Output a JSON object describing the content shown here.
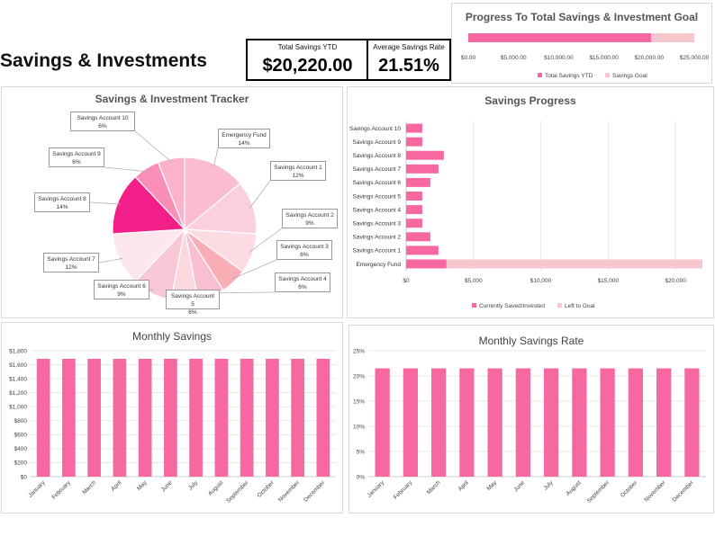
{
  "page": {
    "title": "Savings & Investments"
  },
  "kpis": {
    "total_label": "Total Savings YTD",
    "total_value": "$20,220.00",
    "rate_label": "Average Savings Rate",
    "rate_value": "21.51%"
  },
  "colors": {
    "pink": "#f768a1",
    "light_pink": "#f7c6cf",
    "accent": "#ff3e8e"
  },
  "chart_data": [
    {
      "id": "goal",
      "type": "bar",
      "orientation": "horizontal",
      "title": "Progress To Total Savings & Investment Goal",
      "xlim": [
        0,
        25000
      ],
      "xticks": [
        "$0.00",
        "$5,000.00",
        "$10,000.00",
        "$15,000.00",
        "$20,000.00",
        "$25,000.00"
      ],
      "series": [
        {
          "name": "Total Savings YTD",
          "values": [
            20220
          ]
        },
        {
          "name": "Savings Goal",
          "values": [
            25000
          ]
        }
      ]
    },
    {
      "id": "tracker",
      "type": "pie",
      "title": "Savings & Investment Tracker",
      "slices": [
        {
          "label": "Emergency Fund",
          "pct": "14%",
          "value": 14,
          "color": "#f9bcd0"
        },
        {
          "label": "Savings Account 1",
          "pct": "12%",
          "value": 12,
          "color": "#fbcfdc"
        },
        {
          "label": "Savings Account 2",
          "pct": "9%",
          "value": 9,
          "color": "#fcdbe3"
        },
        {
          "label": "Savings Account 3",
          "pct": "6%",
          "value": 6,
          "color": "#f9adb5"
        },
        {
          "label": "Savings Account 4",
          "pct": "6%",
          "value": 6,
          "color": "#f7bfd1"
        },
        {
          "label": "Savings Account 5",
          "pct": "6%",
          "value": 6,
          "color": "#fbd8de"
        },
        {
          "label": "Savings Account 6",
          "pct": "9%",
          "value": 9,
          "color": "#f9c8d6"
        },
        {
          "label": "Savings Account 7",
          "pct": "12%",
          "value": 12,
          "color": "#fde6ec"
        },
        {
          "label": "Savings Account 8",
          "pct": "14%",
          "value": 14,
          "color": "#f31f89"
        },
        {
          "label": "Savings Account 9",
          "pct": "6%",
          "value": 6,
          "color": "#f98fb9"
        },
        {
          "label": "Savings Account 10",
          "pct": "6%",
          "value": 6,
          "color": "#fbb3cb"
        }
      ]
    },
    {
      "id": "progress",
      "type": "bar",
      "orientation": "horizontal",
      "stacked": true,
      "title": "Savings Progress",
      "categories": [
        "Savings Account 10",
        "Savings Account 9",
        "Savings Account 8",
        "Savings Account 7",
        "Savings Account 6",
        "Savings Account 5",
        "Savings Account 4",
        "Savings Account 3",
        "Savings Account 2",
        "Savings Account 1",
        "Emergency Fund"
      ],
      "xlim": [
        0,
        22000
      ],
      "xticks": [
        {
          "value": 0,
          "label": "$0"
        },
        {
          "value": 5000,
          "label": "$5,000"
        },
        {
          "value": 10000,
          "label": "$10,000"
        },
        {
          "value": 15000,
          "label": "$15,000"
        },
        {
          "value": 20000,
          "label": "$20,000"
        }
      ],
      "series": [
        {
          "name": "Currently Saved/Invested",
          "values": [
            1200,
            1200,
            2800,
            2400,
            1800,
            1200,
            1200,
            1200,
            1800,
            2400,
            3000
          ]
        },
        {
          "name": "Left to Goal",
          "values": [
            0,
            0,
            0,
            0,
            0,
            0,
            0,
            0,
            0,
            0,
            19000
          ]
        }
      ]
    },
    {
      "id": "monthly_savings",
      "type": "bar",
      "title": "Monthly Savings",
      "categories": [
        "January",
        "February",
        "March",
        "April",
        "May",
        "June",
        "July",
        "August",
        "September",
        "October",
        "November",
        "December"
      ],
      "values": [
        1685,
        1685,
        1685,
        1685,
        1685,
        1685,
        1685,
        1685,
        1685,
        1685,
        1685,
        1685
      ],
      "ylim": [
        0,
        1800
      ],
      "yticks": [
        {
          "value": 0,
          "label": "$0"
        },
        {
          "value": 200,
          "label": "$200"
        },
        {
          "value": 400,
          "label": "$400"
        },
        {
          "value": 600,
          "label": "$600"
        },
        {
          "value": 800,
          "label": "$800"
        },
        {
          "value": 1000,
          "label": "$1,000"
        },
        {
          "value": 1200,
          "label": "$1,200"
        },
        {
          "value": 1400,
          "label": "$1,400"
        },
        {
          "value": 1600,
          "label": "$1,600"
        },
        {
          "value": 1800,
          "label": "$1,800"
        }
      ]
    },
    {
      "id": "monthly_rate",
      "type": "bar",
      "title": "Monthly Savings Rate",
      "categories": [
        "January",
        "February",
        "March",
        "April",
        "May",
        "June",
        "July",
        "August",
        "September",
        "October",
        "November",
        "December"
      ],
      "values": [
        21.5,
        21.5,
        21.5,
        21.5,
        21.5,
        21.5,
        21.5,
        21.5,
        21.5,
        21.5,
        21.5,
        21.5
      ],
      "ylim": [
        0,
        25
      ],
      "yticks": [
        {
          "value": 0,
          "label": "0%"
        },
        {
          "value": 5,
          "label": "5%"
        },
        {
          "value": 10,
          "label": "10%"
        },
        {
          "value": 15,
          "label": "15%"
        },
        {
          "value": 20,
          "label": "20%"
        },
        {
          "value": 25,
          "label": "25%"
        }
      ]
    }
  ]
}
